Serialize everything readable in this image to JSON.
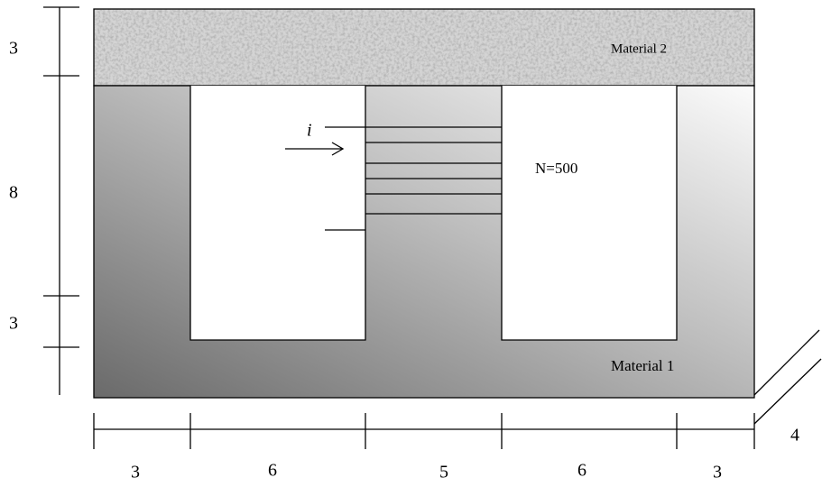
{
  "labels": {
    "material_1": "Material 1",
    "material_2": "Material 2",
    "turns": "N=500",
    "current": "i"
  },
  "dimensions": {
    "left": [
      3,
      8,
      3
    ],
    "bottom": [
      3,
      6,
      5,
      6,
      3
    ],
    "depth": 4
  }
}
